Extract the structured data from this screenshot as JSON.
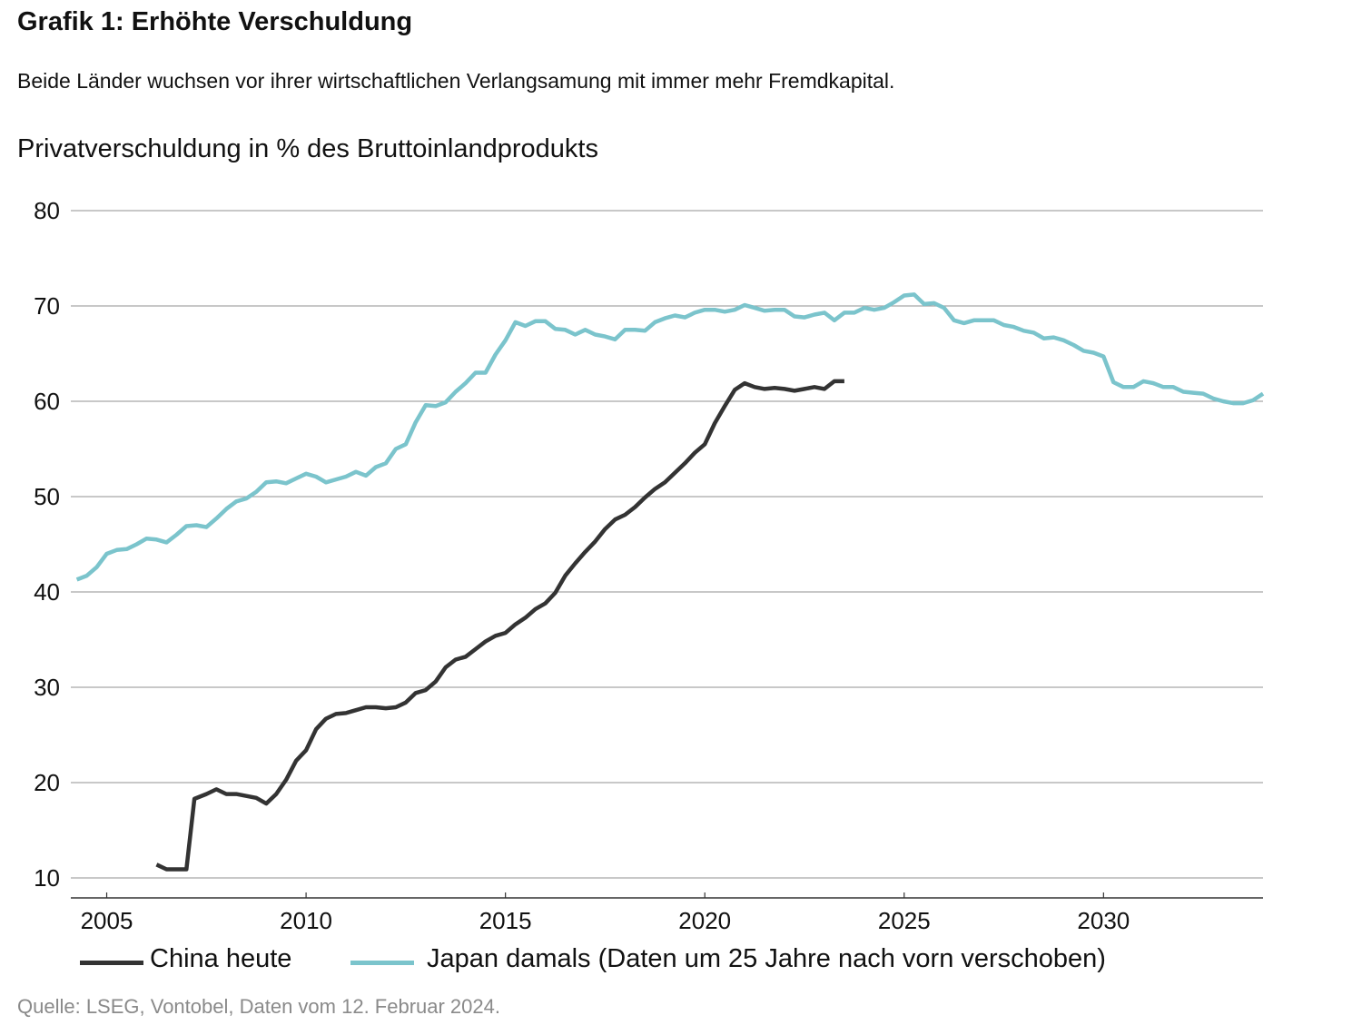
{
  "header": {
    "title": "Grafik 1: Erhöhte Verschuldung",
    "subtitle": "Beide Länder wuchsen vor ihrer wirtschaftlichen Verlangsamung mit immer mehr Fremdkapital.",
    "chart_label": "Privatverschuldung in % des Bruttoinlandprodukts"
  },
  "footer": {
    "source": "Quelle: LSEG, Vontobel, Daten vom 12. Februar 2024."
  },
  "colors": {
    "china": "#333333",
    "japan": "#7bc4cc",
    "grid": "#a6a6a6",
    "axis": "#333333"
  },
  "chart_data": {
    "type": "line",
    "title": "Privatverschuldung in % des Bruttoinlandprodukts",
    "xlabel": "",
    "ylabel": "",
    "xlim": [
      2004.1,
      2034.0
    ],
    "ylim": [
      10,
      80
    ],
    "x_ticks": [
      2005,
      2010,
      2015,
      2020,
      2025,
      2030
    ],
    "y_ticks": [
      10,
      20,
      30,
      40,
      50,
      60,
      70,
      80
    ],
    "grid": "horizontal",
    "legend_position": "bottom",
    "series": [
      {
        "name": "China heute",
        "color": "#333333",
        "points": [
          [
            2006.25,
            11.4
          ],
          [
            2006.5,
            10.9
          ],
          [
            2006.75,
            10.9
          ],
          [
            2007.0,
            10.9
          ],
          [
            2007.2,
            18.3
          ],
          [
            2007.5,
            18.8
          ],
          [
            2007.75,
            19.3
          ],
          [
            2008.0,
            18.8
          ],
          [
            2008.25,
            18.8
          ],
          [
            2008.5,
            18.6
          ],
          [
            2008.75,
            18.4
          ],
          [
            2009.0,
            17.8
          ],
          [
            2009.25,
            18.8
          ],
          [
            2009.5,
            20.3
          ],
          [
            2009.75,
            22.3
          ],
          [
            2010.0,
            23.4
          ],
          [
            2010.25,
            25.6
          ],
          [
            2010.5,
            26.7
          ],
          [
            2010.75,
            27.2
          ],
          [
            2011.0,
            27.3
          ],
          [
            2011.25,
            27.6
          ],
          [
            2011.5,
            27.9
          ],
          [
            2011.75,
            27.9
          ],
          [
            2012.0,
            27.8
          ],
          [
            2012.25,
            27.9
          ],
          [
            2012.5,
            28.4
          ],
          [
            2012.75,
            29.4
          ],
          [
            2013.0,
            29.7
          ],
          [
            2013.25,
            30.6
          ],
          [
            2013.5,
            32.1
          ],
          [
            2013.75,
            32.9
          ],
          [
            2014.0,
            33.2
          ],
          [
            2014.25,
            34.0
          ],
          [
            2014.5,
            34.8
          ],
          [
            2014.75,
            35.4
          ],
          [
            2015.0,
            35.7
          ],
          [
            2015.25,
            36.6
          ],
          [
            2015.5,
            37.3
          ],
          [
            2015.75,
            38.2
          ],
          [
            2016.0,
            38.8
          ],
          [
            2016.25,
            39.9
          ],
          [
            2016.5,
            41.7
          ],
          [
            2016.75,
            43.0
          ],
          [
            2017.0,
            44.2
          ],
          [
            2017.25,
            45.3
          ],
          [
            2017.5,
            46.6
          ],
          [
            2017.75,
            47.6
          ],
          [
            2018.0,
            48.1
          ],
          [
            2018.25,
            48.9
          ],
          [
            2018.5,
            49.9
          ],
          [
            2018.75,
            50.8
          ],
          [
            2019.0,
            51.5
          ],
          [
            2019.25,
            52.5
          ],
          [
            2019.5,
            53.5
          ],
          [
            2019.75,
            54.6
          ],
          [
            2020.0,
            55.5
          ],
          [
            2020.25,
            57.7
          ],
          [
            2020.5,
            59.5
          ],
          [
            2020.75,
            61.2
          ],
          [
            2021.0,
            61.9
          ],
          [
            2021.25,
            61.5
          ],
          [
            2021.5,
            61.3
          ],
          [
            2021.75,
            61.4
          ],
          [
            2022.0,
            61.3
          ],
          [
            2022.25,
            61.1
          ],
          [
            2022.5,
            61.3
          ],
          [
            2022.75,
            61.5
          ],
          [
            2023.0,
            61.3
          ],
          [
            2023.25,
            62.1
          ],
          [
            2023.5,
            62.1
          ]
        ]
      },
      {
        "name": "Japan damals (Daten um 25 Jahre nach vorn verschoben)",
        "color": "#7bc4cc",
        "points": [
          [
            2004.25,
            41.3
          ],
          [
            2004.5,
            41.7
          ],
          [
            2004.75,
            42.6
          ],
          [
            2005.0,
            44.0
          ],
          [
            2005.25,
            44.4
          ],
          [
            2005.5,
            44.5
          ],
          [
            2005.75,
            45.0
          ],
          [
            2006.0,
            45.6
          ],
          [
            2006.25,
            45.5
          ],
          [
            2006.5,
            45.2
          ],
          [
            2006.75,
            46.0
          ],
          [
            2007.0,
            46.9
          ],
          [
            2007.25,
            47.0
          ],
          [
            2007.5,
            46.8
          ],
          [
            2007.75,
            47.7
          ],
          [
            2008.0,
            48.7
          ],
          [
            2008.25,
            49.5
          ],
          [
            2008.5,
            49.8
          ],
          [
            2008.75,
            50.5
          ],
          [
            2009.0,
            51.5
          ],
          [
            2009.25,
            51.6
          ],
          [
            2009.5,
            51.4
          ],
          [
            2009.75,
            51.9
          ],
          [
            2010.0,
            52.4
          ],
          [
            2010.25,
            52.1
          ],
          [
            2010.5,
            51.5
          ],
          [
            2010.75,
            51.8
          ],
          [
            2011.0,
            52.1
          ],
          [
            2011.25,
            52.6
          ],
          [
            2011.5,
            52.2
          ],
          [
            2011.75,
            53.1
          ],
          [
            2012.0,
            53.5
          ],
          [
            2012.25,
            55.0
          ],
          [
            2012.5,
            55.5
          ],
          [
            2012.75,
            57.8
          ],
          [
            2013.0,
            59.6
          ],
          [
            2013.25,
            59.5
          ],
          [
            2013.5,
            59.9
          ],
          [
            2013.75,
            61.0
          ],
          [
            2014.0,
            61.9
          ],
          [
            2014.25,
            63.0
          ],
          [
            2014.5,
            63.0
          ],
          [
            2014.75,
            64.9
          ],
          [
            2015.0,
            66.4
          ],
          [
            2015.25,
            68.3
          ],
          [
            2015.5,
            67.9
          ],
          [
            2015.75,
            68.4
          ],
          [
            2016.0,
            68.4
          ],
          [
            2016.25,
            67.6
          ],
          [
            2016.5,
            67.5
          ],
          [
            2016.75,
            67.0
          ],
          [
            2017.0,
            67.5
          ],
          [
            2017.25,
            67.0
          ],
          [
            2017.5,
            66.8
          ],
          [
            2017.75,
            66.5
          ],
          [
            2018.0,
            67.5
          ],
          [
            2018.25,
            67.5
          ],
          [
            2018.5,
            67.4
          ],
          [
            2018.75,
            68.3
          ],
          [
            2019.0,
            68.7
          ],
          [
            2019.25,
            69.0
          ],
          [
            2019.5,
            68.8
          ],
          [
            2019.75,
            69.3
          ],
          [
            2020.0,
            69.6
          ],
          [
            2020.25,
            69.6
          ],
          [
            2020.5,
            69.4
          ],
          [
            2020.75,
            69.6
          ],
          [
            2021.0,
            70.1
          ],
          [
            2021.25,
            69.8
          ],
          [
            2021.5,
            69.5
          ],
          [
            2021.75,
            69.6
          ],
          [
            2022.0,
            69.6
          ],
          [
            2022.25,
            68.9
          ],
          [
            2022.5,
            68.8
          ],
          [
            2022.75,
            69.1
          ],
          [
            2023.0,
            69.3
          ],
          [
            2023.25,
            68.5
          ],
          [
            2023.5,
            69.3
          ],
          [
            2023.75,
            69.3
          ],
          [
            2024.0,
            69.8
          ],
          [
            2024.25,
            69.6
          ],
          [
            2024.5,
            69.8
          ],
          [
            2024.75,
            70.4
          ],
          [
            2025.0,
            71.1
          ],
          [
            2025.25,
            71.2
          ],
          [
            2025.5,
            70.2
          ],
          [
            2025.75,
            70.3
          ],
          [
            2026.0,
            69.8
          ],
          [
            2026.25,
            68.5
          ],
          [
            2026.5,
            68.2
          ],
          [
            2026.75,
            68.5
          ],
          [
            2027.0,
            68.5
          ],
          [
            2027.25,
            68.5
          ],
          [
            2027.5,
            68.0
          ],
          [
            2027.75,
            67.8
          ],
          [
            2028.0,
            67.4
          ],
          [
            2028.25,
            67.2
          ],
          [
            2028.5,
            66.6
          ],
          [
            2028.75,
            66.7
          ],
          [
            2029.0,
            66.4
          ],
          [
            2029.25,
            65.9
          ],
          [
            2029.5,
            65.3
          ],
          [
            2029.75,
            65.1
          ],
          [
            2030.0,
            64.7
          ],
          [
            2030.25,
            62.0
          ],
          [
            2030.5,
            61.5
          ],
          [
            2030.75,
            61.5
          ],
          [
            2031.0,
            62.1
          ],
          [
            2031.25,
            61.9
          ],
          [
            2031.5,
            61.5
          ],
          [
            2031.75,
            61.5
          ],
          [
            2032.0,
            61.0
          ],
          [
            2032.25,
            60.9
          ],
          [
            2032.5,
            60.8
          ],
          [
            2032.75,
            60.3
          ],
          [
            2033.0,
            60.0
          ],
          [
            2033.25,
            59.8
          ],
          [
            2033.5,
            59.8
          ],
          [
            2033.75,
            60.1
          ],
          [
            2034.0,
            60.8
          ]
        ]
      }
    ]
  }
}
